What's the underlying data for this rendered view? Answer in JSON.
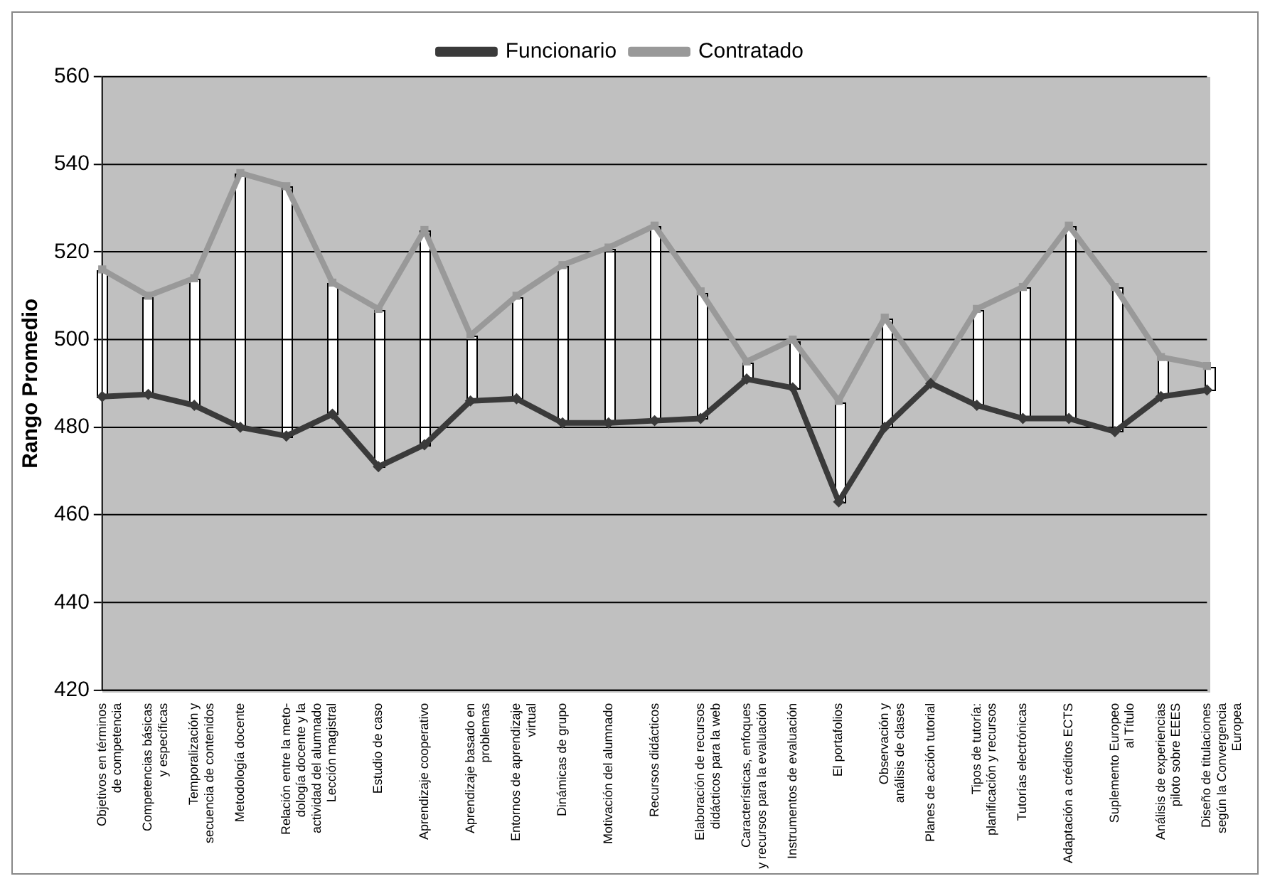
{
  "chart_data": {
    "type": "line",
    "ylabel": "Rango Promedio",
    "categories": [
      "Objetivos en términos\nde competencia",
      "Competencias básicas\ny específicas",
      "Temporalización y\nsecuencia de contenidos",
      "Metodología docente",
      "Relación entre la meto-\ndología docente y la\nactividad del alumnado",
      "Lección magistral",
      "Estudio de caso",
      "Aprendizaje cooperativo",
      "Aprendizaje basado en\nproblemas",
      "Entornos de aprendizaje\nvirtual",
      "Dinámicas de grupo",
      "Motivación del alumnado",
      "Recursos didácticos",
      "Elaboración de recursos\ndidácticos para la web",
      "Características, enfoques\ny recursos para la evaluación",
      "Instrumentos de evaluación",
      "El portafolios",
      "Observación y\nanálisis de clases",
      "Planes de acción tutorial",
      "Tipos de tutoría:\nplanificación y recursos",
      "Tutorías electrónicas",
      "Adaptación a créditos ECTS",
      "Suplemento Europeo\nal Título",
      "Análisis de experiencias\npiloto sobre EEES",
      "Diseño de titulaciones\nsegún la Convergencia\nEuropea"
    ],
    "series": [
      {
        "name": "Funcionario",
        "color": "#3a3a3a",
        "marker": "diamond",
        "values": [
          487,
          487.5,
          485,
          480,
          478,
          483,
          471,
          476,
          486,
          486.5,
          481,
          481,
          481.5,
          482,
          491,
          489,
          463,
          480,
          490,
          485,
          482,
          482,
          479,
          487,
          488.5
        ]
      },
      {
        "name": "Contratado",
        "color": "#999999",
        "marker": "square",
        "values": [
          516,
          510,
          514,
          538,
          535,
          513,
          507,
          525,
          501,
          510,
          517,
          521,
          526,
          511,
          495,
          500,
          486,
          505,
          490,
          507,
          512,
          526,
          512,
          496,
          494
        ]
      }
    ],
    "ylim": [
      420,
      560
    ],
    "yticks": [
      420,
      440,
      460,
      480,
      500,
      520,
      540,
      560
    ],
    "grid": "y",
    "legend": "top",
    "line_style": "solid"
  }
}
